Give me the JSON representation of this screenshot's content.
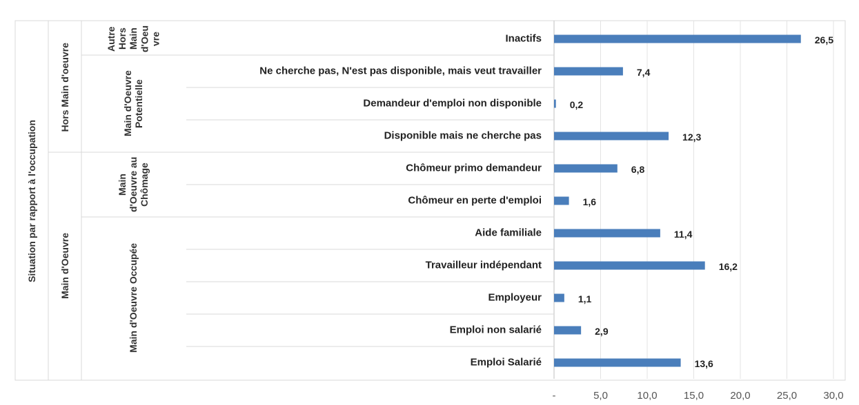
{
  "chart_data": {
    "type": "bar",
    "orientation": "horizontal",
    "axis_label": "Situation par rapport à l'occupation",
    "color": "#4a7ebb",
    "xlim": [
      0,
      30
    ],
    "xticks": [
      {
        "value": 0,
        "label": "-"
      },
      {
        "value": 5,
        "label": "5,0"
      },
      {
        "value": 10,
        "label": "10,0"
      },
      {
        "value": 15,
        "label": "15,0"
      },
      {
        "value": 20,
        "label": "20,0"
      },
      {
        "value": 25,
        "label": "25,0"
      },
      {
        "value": 30,
        "label": "30,0"
      }
    ],
    "grid": true,
    "groups": [
      {
        "name": "Hors Main d'oeuvre",
        "subgroups": [
          {
            "name": "Autre Hors Main d'Oeuvre",
            "categories": [
              "Inactifs"
            ],
            "values": [
              26.5
            ],
            "value_labels": [
              "26,5"
            ]
          },
          {
            "name": "Main d'Oeuvre Potentielle",
            "categories": [
              "Ne cherche pas, N'est pas disponible, mais veut travailler",
              "Demandeur d'emploi non disponible",
              "Disponible mais ne cherche pas"
            ],
            "values": [
              7.4,
              0.2,
              12.3
            ],
            "value_labels": [
              "7,4",
              "0,2",
              "12,3"
            ]
          }
        ]
      },
      {
        "name": "Main d'Oeuvre",
        "subgroups": [
          {
            "name": "Main d'Oeuvre au Chômage",
            "categories": [
              "Chômeur primo demandeur",
              "Chômeur en perte d'emploi"
            ],
            "values": [
              6.8,
              1.6
            ],
            "value_labels": [
              "6,8",
              "1,6"
            ]
          },
          {
            "name": "Main d'Oeuvre Occupée",
            "categories": [
              "Aide familiale",
              "Travailleur indépendant",
              "Employeur",
              "Emploi non salarié",
              "Emploi Salarié"
            ],
            "values": [
              11.4,
              16.2,
              1.1,
              2.9,
              13.6
            ],
            "value_labels": [
              "11,4",
              "16,2",
              "1,1",
              "2,9",
              "13,6"
            ]
          }
        ]
      }
    ]
  }
}
